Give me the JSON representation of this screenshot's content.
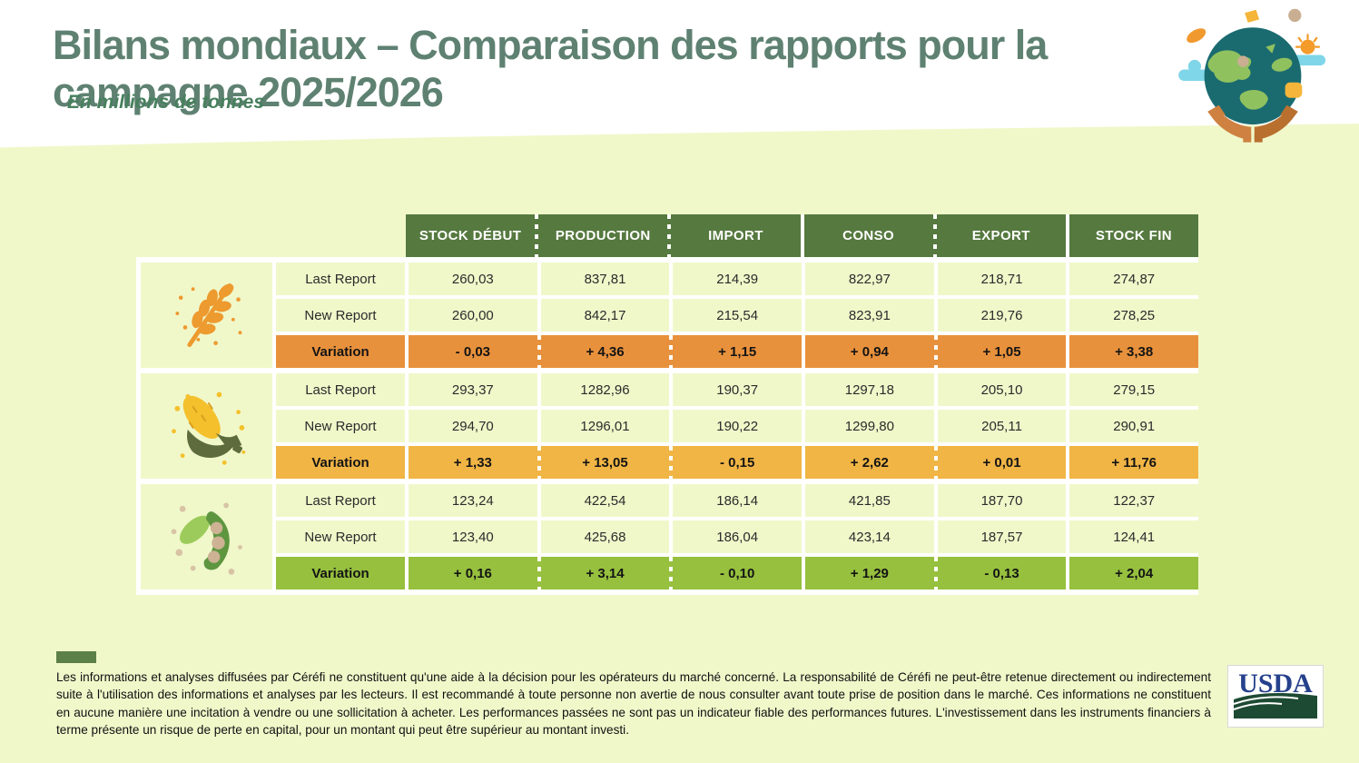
{
  "header": {
    "title": "Bilans mondiaux – Comparaison des rapports pour la campagne 2025/2026",
    "subtitle": "En millions de tonnes"
  },
  "chart_data": {
    "type": "table",
    "title": "Bilans mondiaux – Comparaison des rapports pour la campagne 2025/2026",
    "unit": "millions de tonnes",
    "columns": [
      "STOCK DÉBUT",
      "PRODUCTION",
      "IMPORT",
      "CONSO",
      "EXPORT",
      "STOCK FIN"
    ],
    "separator_pattern": [
      "dash",
      "dash",
      "solid",
      "dash",
      "solid"
    ],
    "groups": [
      {
        "commodity": "wheat",
        "icon": "wheat-icon",
        "accent": "#E8913C",
        "rows": [
          {
            "label": "Last Report",
            "values": [
              "260,03",
              "837,81",
              "214,39",
              "822,97",
              "218,71",
              "274,87"
            ]
          },
          {
            "label": "New Report",
            "values": [
              "260,00",
              "842,17",
              "215,54",
              "823,91",
              "219,76",
              "278,25"
            ]
          },
          {
            "label": "Variation",
            "values": [
              "- 0,03",
              "+ 4,36",
              "+ 1,15",
              "+ 0,94",
              "+ 1,05",
              "+ 3,38"
            ],
            "variation": true
          }
        ]
      },
      {
        "commodity": "corn",
        "icon": "corn-icon",
        "accent": "#F1B545",
        "rows": [
          {
            "label": "Last Report",
            "values": [
              "293,37",
              "1282,96",
              "190,37",
              "1297,18",
              "205,10",
              "279,15"
            ]
          },
          {
            "label": "New Report",
            "values": [
              "294,70",
              "1296,01",
              "190,22",
              "1299,80",
              "205,11",
              "290,91"
            ]
          },
          {
            "label": "Variation",
            "values": [
              "+ 1,33",
              "+ 13,05",
              "- 0,15",
              "+ 2,62",
              "+ 0,01",
              "+ 11,76"
            ],
            "variation": true
          }
        ]
      },
      {
        "commodity": "soybean",
        "icon": "soybean-icon",
        "accent": "#96C03E",
        "rows": [
          {
            "label": "Last Report",
            "values": [
              "123,24",
              "422,54",
              "186,14",
              "421,85",
              "187,70",
              "122,37"
            ]
          },
          {
            "label": "New Report",
            "values": [
              "123,40",
              "425,68",
              "186,04",
              "423,14",
              "187,57",
              "124,41"
            ]
          },
          {
            "label": "Variation",
            "values": [
              "+ 0,16",
              "+ 3,14",
              "- 0,10",
              "+ 1,29",
              "- 0,13",
              "+ 2,04"
            ],
            "variation": true
          }
        ]
      }
    ]
  },
  "footer": {
    "disclaimer": "Les informations et analyses diffusées par Céréfi ne constituent qu'une aide à la décision pour les opérateurs du marché concerné. La responsabilité de Céréfi ne peut-être retenue directement ou indirectement suite à l'utilisation des informations et analyses par les lecteurs. Il est recommandé à toute personne non avertie de nous consulter avant toute prise de position dans le marché. Ces informations ne constituent en aucune manière une incitation à vendre ou une sollicitation à acheter. Les performances passées ne sont pas un indicateur fiable des performances futures. L'investissement dans les instruments financiers à terme présente un risque de perte en capital, pour un montant qui peut être supérieur au montant investi.",
    "usda_logo_text": "USDA"
  },
  "colors": {
    "page_background": "#F0F8CA",
    "header_green": "#56793F",
    "wheat_accent": "#E8913C",
    "corn_accent": "#F1B545",
    "soybean_accent": "#96C03E",
    "title_green": "#5E8172",
    "subtitle_green": "#47805D",
    "footer_bar_green": "#5D8049",
    "usda_blue": "#26418C",
    "usda_green": "#1D4A33"
  }
}
